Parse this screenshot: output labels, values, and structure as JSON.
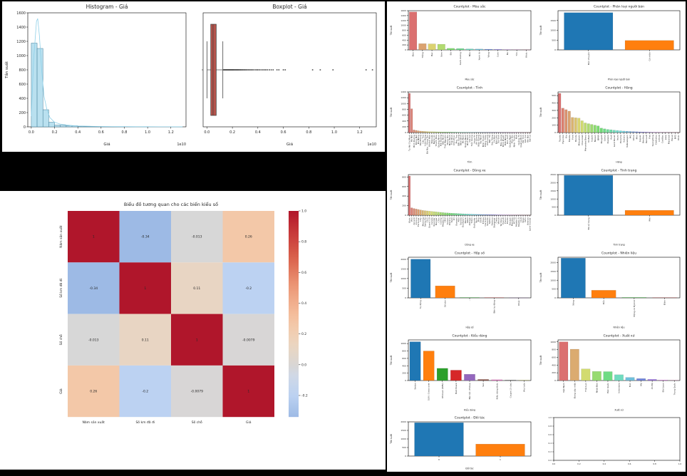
{
  "page": {
    "background_color": "#000000",
    "panel_color": "#ffffff"
  },
  "chart_data": [
    {
      "type": "histogram",
      "title": "Histogram - Giá",
      "xlabel": "Giá",
      "ylabel": "Tần suất",
      "offset_text": "1e10",
      "xlim": [
        -0.03,
        1.33
      ],
      "xticks": [
        0.0,
        0.2,
        0.4,
        0.6,
        0.8,
        1.0,
        1.2
      ],
      "ylim": [
        0,
        1600
      ],
      "yticks": [
        0,
        200,
        400,
        600,
        800,
        1000,
        1200,
        1400,
        1600
      ],
      "bin_start": 0,
      "bin_width": 0.05,
      "counts": [
        1175,
        1100,
        240,
        65,
        25,
        22,
        18,
        15,
        6,
        4,
        3,
        2,
        2,
        1,
        1,
        1,
        0,
        1,
        0,
        1,
        0,
        0,
        0,
        0,
        1,
        1
      ],
      "kde": [
        [
          0,
          150
        ],
        [
          0.02,
          950
        ],
        [
          0.045,
          1480
        ],
        [
          0.055,
          1520
        ],
        [
          0.07,
          1280
        ],
        [
          0.09,
          780
        ],
        [
          0.11,
          420
        ],
        [
          0.135,
          240
        ],
        [
          0.16,
          130
        ],
        [
          0.2,
          65
        ],
        [
          0.25,
          38
        ],
        [
          0.3,
          26
        ],
        [
          0.35,
          18
        ],
        [
          0.4,
          12
        ],
        [
          0.5,
          8
        ],
        [
          0.6,
          5
        ],
        [
          0.7,
          4
        ],
        [
          0.8,
          3
        ],
        [
          0.9,
          2
        ],
        [
          1.0,
          2
        ],
        [
          1.1,
          1
        ],
        [
          1.2,
          1
        ],
        [
          1.3,
          1
        ]
      ],
      "bar_color": "#b9e0ef",
      "bar_edge": "#3e7b96",
      "kde_color": "#8fd0e8"
    },
    {
      "type": "boxplot",
      "title": "Boxplot - Giá",
      "xlabel": "Giá",
      "offset_text": "1e10",
      "xlim": [
        -0.03,
        1.33
      ],
      "xticks": [
        0.0,
        0.2,
        0.4,
        0.6,
        0.8,
        1.0,
        1.2
      ],
      "q1": 0.03,
      "median": 0.048,
      "q3": 0.073,
      "whisker_low": 0.001,
      "whisker_high": 0.125,
      "outliers": [
        0.13,
        0.134,
        0.138,
        0.142,
        0.146,
        0.15,
        0.154,
        0.158,
        0.162,
        0.166,
        0.17,
        0.174,
        0.178,
        0.182,
        0.186,
        0.19,
        0.194,
        0.198,
        0.202,
        0.206,
        0.21,
        0.215,
        0.22,
        0.225,
        0.23,
        0.235,
        0.24,
        0.245,
        0.25,
        0.256,
        0.262,
        0.268,
        0.275,
        0.282,
        0.29,
        0.298,
        0.306,
        0.315,
        0.325,
        0.335,
        0.345,
        0.355,
        0.365,
        0.378,
        0.39,
        0.4,
        0.412,
        0.425,
        0.438,
        0.45,
        0.462,
        0.475,
        0.49,
        0.505,
        0.52,
        0.55,
        0.565,
        0.6,
        0.615,
        0.83,
        0.89,
        0.99,
        1.25,
        1.3
      ],
      "box_color": "#b5544c",
      "box_edge": "#3a3a3a"
    },
    {
      "type": "heatmap",
      "title": "Biểu đồ tương quan cho các biến kiểu số",
      "labels": [
        "Năm sản xuất",
        "Số km đã đi",
        "Số chỗ",
        "Giá"
      ],
      "matrix": [
        [
          1,
          -0.34,
          -0.013,
          0.26
        ],
        [
          -0.34,
          1,
          0.11,
          -0.2
        ],
        [
          -0.013,
          0.11,
          1,
          -0.0079
        ],
        [
          0.26,
          -0.2,
          -0.0079,
          1
        ]
      ],
      "cell_text": [
        [
          "1",
          "-0.34",
          "-0.013",
          "0.26"
        ],
        [
          "-0.34",
          "1",
          "0.11",
          "-0.2"
        ],
        [
          "-0.013",
          "0.11",
          "1",
          "-0.0079"
        ],
        [
          "0.26",
          "-0.2",
          "-0.0079",
          "1"
        ]
      ],
      "vmin": -0.34,
      "vmax": 1.0,
      "colorbar_ticks": [
        1.0,
        0.8,
        0.6,
        0.4,
        0.2,
        0.0,
        -0.2
      ]
    },
    {
      "type": "countplot",
      "title": "Countplot - Màu sắc",
      "xlabel": "Màu sắc",
      "ylabel": "Tần suất",
      "categories": [
        "Đen",
        "Trắng",
        "Bạc",
        "Xám",
        "Đỏ",
        "Xanh dương",
        "Nâu",
        "Xanh lá",
        "Vàng",
        "Cam",
        "Be",
        "Tím",
        "Khác"
      ],
      "values": [
        1550,
        255,
        245,
        230,
        62,
        55,
        40,
        34,
        28,
        20,
        12,
        8,
        5
      ],
      "ylim": [
        0,
        1600
      ],
      "yticks": [
        0,
        200,
        400,
        600,
        800,
        1000,
        1200,
        1400,
        1600
      ],
      "palette": "husl"
    },
    {
      "type": "countplot",
      "title": "Countplot - Phân loại người bán",
      "xlabel": "Phân loại người bán",
      "ylabel": "Tần suất",
      "categories": [
        "Bán chuyên",
        "Cá nhân"
      ],
      "values": [
        1900,
        480
      ],
      "ylim": [
        0,
        2000
      ],
      "yticks": [
        0,
        500,
        1000,
        1500
      ],
      "palette": "tab10"
    },
    {
      "type": "countplot",
      "title": "Countplot - Tỉnh",
      "xlabel": "Tỉnh",
      "ylabel": "Tần suất",
      "categories": [
        "Tp Hồ Chí Minh",
        "Hà Nội",
        "Bình Dương",
        "Đồng Nai",
        "Đà Nẵng",
        "Hải Phòng",
        "Cần Thơ",
        "Lâm Đồng",
        "Bà Rịa - Vũng Tàu",
        "Khánh Hòa",
        "Đắk Lắk",
        "Nghệ An",
        "Thanh Hóa",
        "Quảng Ninh",
        "Hải Dương",
        "Bắc Ninh",
        "Thái Nguyên",
        "Hưng Yên",
        "Nam Định",
        "Thái Bình",
        "Vĩnh Phúc",
        "Phú Thọ",
        "Bắc Giang",
        "Ninh Bình",
        "Hà Nam",
        "Quảng Nam",
        "Bình Định",
        "Gia Lai",
        "Tiền Giang",
        "Long An",
        "An Giang",
        "Kiên Giang",
        "Tây Ninh",
        "Bình Thuận",
        "Đồng Tháp",
        "Vĩnh Long",
        "Bến Tre",
        "Sóc Trăng",
        "Cà Mau",
        "Bạc Liêu",
        "Trà Vinh",
        "Hậu Giang",
        "Bình Phước",
        "Đắk Nông",
        "Kon Tum",
        "Quảng Ngãi",
        "Phú Yên",
        "Ninh Thuận",
        "Huế",
        "Quảng Trị",
        "Quảng Bình",
        "Hà Tĩnh",
        "Lào Cai",
        "Yên Bái",
        "Sơn La"
      ],
      "values": [
        1350,
        820,
        90,
        75,
        60,
        50,
        45,
        40,
        35,
        32,
        30,
        28,
        26,
        24,
        22,
        20,
        19,
        18,
        17,
        16,
        15,
        14,
        13,
        12,
        12,
        11,
        10,
        10,
        9,
        9,
        8,
        8,
        7,
        7,
        6,
        6,
        6,
        5,
        5,
        5,
        4,
        4,
        4,
        3,
        3,
        3,
        3,
        2,
        2,
        2,
        2,
        2,
        1,
        1,
        1
      ],
      "ylim": [
        0,
        1400
      ],
      "yticks": [
        0,
        200,
        400,
        600,
        800,
        1000,
        1200,
        1400
      ],
      "palette": "husl"
    },
    {
      "type": "countplot",
      "title": "Countplot - Hãng",
      "xlabel": "Hãng",
      "ylabel": "Tần suất",
      "categories": [
        "Toyota",
        "Hyundai",
        "Kia",
        "Mazda",
        "Ford",
        "Honda",
        "Mitsubishi",
        "Chevrolet",
        "Mercedes Benz",
        "VinFast",
        "Suzuki",
        "Nissan",
        "BMW",
        "Peugeot",
        "Lexus",
        "Daewoo",
        "Audi",
        "Land Rover",
        "Isuzu",
        "Porsche",
        "Subaru",
        "Volkswagen",
        "MG",
        "Volvo",
        "Mini",
        "Jaguar",
        "Bentley",
        "Renault",
        "Fiat",
        "SsangYong",
        "Daihatsu",
        "Infiniti",
        "Cadillac",
        "Jeep",
        "Maserati",
        "Haval",
        "BYD",
        "Khác"
      ],
      "values": [
        530,
        330,
        310,
        290,
        205,
        200,
        195,
        160,
        130,
        120,
        110,
        100,
        90,
        60,
        50,
        42,
        38,
        32,
        28,
        24,
        20,
        18,
        15,
        13,
        11,
        9,
        8,
        7,
        6,
        5,
        5,
        4,
        3,
        3,
        2,
        2,
        2,
        1
      ],
      "ylim": [
        0,
        550
      ],
      "yticks": [
        0,
        100,
        200,
        300,
        400,
        500
      ],
      "palette": "husl"
    },
    {
      "type": "countplot",
      "title": "Countplot - Dòng xe",
      "xlabel": "Dòng xe",
      "ylabel": "Tần suất",
      "categories": [
        "Khác",
        "Vios",
        "Accent",
        "Innova",
        "Fortuner",
        "City",
        "Morning",
        "Santa Fe",
        "CX-5",
        "Grand i10",
        "Cerato",
        "Xpander",
        "Ranger",
        "Civic",
        "Camry",
        "Mazda 3",
        "CR-V",
        "Tucson",
        "Elantra",
        "Fadil",
        "K3",
        "Everest",
        "Altis",
        "Sonata",
        "EcoSport",
        "Raize",
        "Veloz",
        "Attrage",
        "Triton",
        "Outlander",
        "Rush",
        "Brio",
        "Swift",
        "Ertiga",
        "Carnival",
        "Sorento",
        "Seltos",
        "Sedona",
        "Stargazer",
        "Creta",
        "Venue",
        "Territory",
        "Transit",
        "Focus",
        "Fiesta",
        "Escape",
        "Mondeo",
        "BT-50",
        "Mazda 2",
        "Mazda 6",
        "CX-8",
        "Wigo",
        "Yaris",
        "Avanza",
        "Land Cruiser"
      ],
      "values": [
        820,
        155,
        140,
        130,
        120,
        110,
        100,
        95,
        90,
        85,
        80,
        75,
        70,
        65,
        60,
        55,
        50,
        48,
        45,
        42,
        40,
        38,
        35,
        32,
        30,
        28,
        26,
        24,
        22,
        20,
        18,
        17,
        16,
        15,
        14,
        13,
        12,
        11,
        10,
        9,
        8,
        8,
        7,
        7,
        6,
        6,
        5,
        5,
        4,
        4,
        3,
        3,
        2,
        2,
        1
      ],
      "ylim": [
        0,
        850
      ],
      "yticks": [
        0,
        200,
        400,
        600,
        800
      ],
      "palette": "husl"
    },
    {
      "type": "countplot",
      "title": "Countplot - Tình trạng",
      "xlabel": "Tình trạng",
      "ylabel": "Tần suất",
      "categories": [
        "Đã sử dụng",
        "Mới"
      ],
      "values": [
        2450,
        300
      ],
      "ylim": [
        0,
        2500
      ],
      "yticks": [
        0,
        500,
        1000,
        1500,
        2000,
        2500
      ],
      "palette": "tab10"
    },
    {
      "type": "countplot",
      "title": "Countplot - Hộp số",
      "xlabel": "Hộp số",
      "ylabel": "Tần suất",
      "categories": [
        "Tự động",
        "Số sàn",
        "-",
        "Bán tự động",
        "Khác"
      ],
      "values": [
        2000,
        620,
        18,
        12,
        5
      ],
      "ylim": [
        0,
        2100
      ],
      "yticks": [
        0,
        500,
        1000,
        1500,
        2000
      ],
      "palette": "tab10"
    },
    {
      "type": "countplot",
      "title": "Countplot - Nhiên liệu",
      "xlabel": "Nhiên liệu",
      "ylabel": "Tần suất",
      "categories": [
        "Xăng",
        "Dầu",
        "Động cơ Hybrid",
        "Điện"
      ],
      "values": [
        2250,
        430,
        22,
        10
      ],
      "ylim": [
        0,
        2300
      ],
      "yticks": [
        0,
        500,
        1000,
        1500,
        2000
      ],
      "palette": "tab10"
    },
    {
      "type": "countplot",
      "title": "Countplot - Kiểu dáng",
      "xlabel": "Kiểu dáng",
      "ylabel": "Tần suất",
      "categories": [
        "Sedan",
        "SUV / Cross over",
        "Minivan (MPV)",
        "Hatchback",
        "Bán tải / Pickup",
        "Van",
        "Kiểu dáng khác",
        "Coupe (2 cửa)",
        "Mui trần"
      ],
      "values": [
        1050,
        800,
        330,
        280,
        170,
        30,
        22,
        15,
        6
      ],
      "ylim": [
        0,
        1100
      ],
      "yticks": [
        0,
        200,
        400,
        600,
        800,
        1000
      ],
      "palette": "tab10"
    },
    {
      "type": "countplot",
      "title": "Countplot - Xuất xứ",
      "xlabel": "Xuất xứ",
      "ylabel": "Tần suất",
      "categories": [
        "Việt Nam",
        "Đang cập nhật",
        "Thái Lan",
        "Nhật Bản",
        "Hàn Quốc",
        "Indonesia",
        "Đức",
        "Mỹ",
        "Ấn Độ",
        "Đài Loan",
        "Trung Quốc"
      ],
      "values": [
        1000,
        810,
        300,
        235,
        230,
        150,
        80,
        50,
        30,
        12,
        6
      ],
      "ylim": [
        0,
        1050
      ],
      "yticks": [
        0,
        200,
        400,
        600,
        800,
        1000
      ],
      "palette": "husl"
    },
    {
      "type": "countplot",
      "title": "Countplot - Đối tác",
      "xlabel": "Đối tác",
      "ylabel": "Tần suất",
      "categories": [
        "0",
        "1"
      ],
      "values": [
        1950,
        700
      ],
      "ylim": [
        0,
        2000
      ],
      "yticks": [
        0,
        500,
        1000,
        1500,
        2000
      ],
      "palette": "tab10"
    },
    {
      "type": "empty",
      "title": "",
      "xticks": [
        0.0,
        0.2,
        0.4,
        0.6,
        0.8,
        1.0
      ],
      "yticks": [
        0.0,
        0.2,
        0.4,
        0.6,
        0.8,
        1.0
      ]
    }
  ]
}
